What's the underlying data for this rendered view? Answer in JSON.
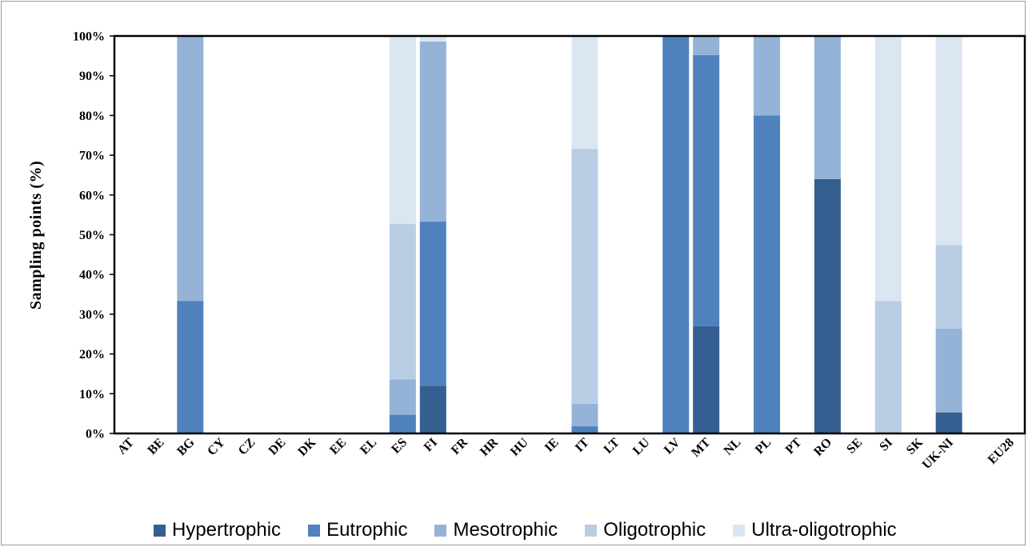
{
  "chart_data": {
    "type": "bar",
    "stacked": true,
    "ylabel": "Sampling points (%)",
    "ylim": [
      0,
      100
    ],
    "yticks": [
      "0%",
      "10%",
      "20%",
      "30%",
      "40%",
      "50%",
      "60%",
      "70%",
      "80%",
      "90%",
      "100%"
    ],
    "grid": false,
    "legend_position": "bottom",
    "categories": [
      "AT",
      "BE",
      "BG",
      "CY",
      "CZ",
      "DE",
      "DK",
      "EE",
      "EL",
      "ES",
      "FI",
      "FR",
      "HR",
      "HU",
      "IE",
      "IT",
      "LT",
      "LU",
      "LV",
      "MT",
      "NL",
      "PL",
      "PT",
      "RO",
      "SE",
      "SI",
      "SK",
      "UK-NI",
      "",
      "EU28"
    ],
    "series": [
      {
        "name": "Hypertrophic",
        "color": "#355f91",
        "values": [
          0,
          0,
          0,
          0,
          0,
          0,
          0,
          0,
          0,
          0,
          12,
          0,
          0,
          0,
          0,
          0,
          0,
          0,
          0,
          27,
          0,
          0,
          0,
          64,
          0,
          0,
          0,
          5.3,
          0,
          0
        ]
      },
      {
        "name": "Eutrophic",
        "color": "#4f81bd",
        "values": [
          0,
          0,
          33.3,
          0,
          0,
          0,
          0,
          0,
          0,
          4.7,
          41.3,
          0,
          0,
          0,
          0,
          1.8,
          0,
          0,
          100,
          68.2,
          0,
          80,
          0,
          0,
          0,
          0,
          0,
          0,
          0,
          0
        ]
      },
      {
        "name": "Mesotrophic",
        "color": "#95b3d7",
        "values": [
          0,
          0,
          66.7,
          0,
          0,
          0,
          0,
          0,
          0,
          8.9,
          45.3,
          0,
          0,
          0,
          0,
          5.7,
          0,
          0,
          0,
          4.8,
          0,
          20,
          0,
          36,
          0,
          0,
          0,
          21.1,
          0,
          0
        ]
      },
      {
        "name": "Oligotrophic",
        "color": "#b9cde5",
        "values": [
          0,
          0,
          0,
          0,
          0,
          0,
          0,
          0,
          0,
          39.1,
          0,
          0,
          0,
          0,
          0,
          64.1,
          0,
          0,
          0,
          0,
          0,
          0,
          0,
          0,
          0,
          33.3,
          0,
          21,
          0,
          0
        ]
      },
      {
        "name": "Ultra-oligotrophic",
        "color": "#dce6f2",
        "values": [
          0,
          0,
          0,
          0,
          0,
          0,
          0,
          0,
          0,
          47.3,
          1.4,
          0,
          0,
          0,
          0,
          28.4,
          0,
          0,
          0,
          0,
          0,
          0,
          0,
          0,
          0,
          66.7,
          0,
          52.6,
          0,
          0
        ]
      }
    ]
  }
}
